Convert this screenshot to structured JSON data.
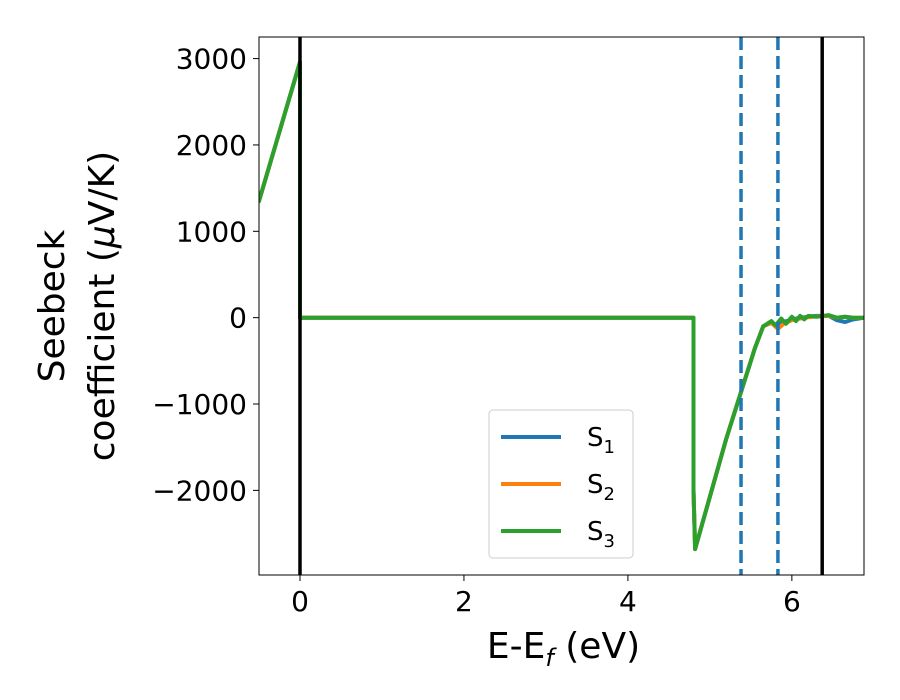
{
  "chart_data": {
    "type": "line",
    "xlabel_main": "E-E",
    "xlabel_sub": "f",
    "xlabel_unit": " (eV)",
    "ylabel_line1": "Seebeck",
    "ylabel_line2": "coefficient  (",
    "ylabel_mu": "μ",
    "ylabel_unit": "V/K)",
    "xlim": [
      -0.5,
      6.88
    ],
    "ylim": [
      -2980,
      3250
    ],
    "xticks": [
      0,
      2,
      4,
      6
    ],
    "yticks": [
      -2000,
      -1000,
      0,
      1000,
      2000,
      3000
    ],
    "xtick_labels": [
      "0",
      "2",
      "4",
      "6"
    ],
    "ytick_labels": [
      "−2000",
      "−1000",
      "0",
      "1000",
      "2000",
      "3000"
    ],
    "vlines": [
      {
        "x": 0.0,
        "style": "solid",
        "color": "#000000"
      },
      {
        "x": 6.37,
        "style": "solid",
        "color": "#000000"
      },
      {
        "x": 5.38,
        "style": "dashed",
        "color": "#1f77b4"
      },
      {
        "x": 5.83,
        "style": "dashed",
        "color": "#1f77b4"
      }
    ],
    "legend_position": "lower-center",
    "series": [
      {
        "name": "S",
        "sub": "1",
        "color": "#1f77b4",
        "x": [
          -0.5,
          0.0,
          0.0,
          4.8,
          4.8,
          4.82,
          5.2,
          5.4,
          5.55,
          5.65,
          5.75,
          5.83,
          5.9,
          6.0,
          6.1,
          6.2,
          6.3,
          6.45,
          6.55,
          6.65,
          6.75,
          6.88
        ],
        "y": [
          1350,
          2960,
          0,
          0,
          -2000,
          -2680,
          -1400,
          -800,
          -350,
          -100,
          -60,
          -110,
          -50,
          -20,
          0,
          10,
          20,
          20,
          -30,
          -50,
          -20,
          0
        ]
      },
      {
        "name": "S",
        "sub": "2",
        "color": "#ff7f0e",
        "x": [
          -0.5,
          0.0,
          0.0,
          4.8,
          4.8,
          4.82,
          5.2,
          5.4,
          5.55,
          5.65,
          5.75,
          5.83,
          5.9,
          6.0,
          6.1,
          6.2,
          6.3,
          6.45,
          6.55,
          6.65,
          6.75,
          6.88
        ],
        "y": [
          1350,
          2960,
          0,
          0,
          -2000,
          -2680,
          -1400,
          -800,
          -350,
          -100,
          -60,
          -130,
          -70,
          -30,
          -10,
          5,
          15,
          20,
          0,
          10,
          0,
          0
        ]
      },
      {
        "name": "S",
        "sub": "3",
        "color": "#2ca02c",
        "x": [
          -0.5,
          0.0,
          0.0,
          4.8,
          4.8,
          4.82,
          5.2,
          5.4,
          5.55,
          5.65,
          5.75,
          5.8,
          5.87,
          5.93,
          6.0,
          6.05,
          6.1,
          6.15,
          6.2,
          6.3,
          6.45,
          6.55,
          6.65,
          6.75,
          6.88
        ],
        "y": [
          1350,
          2960,
          0,
          0,
          -2000,
          -2680,
          -1400,
          -800,
          -350,
          -100,
          -40,
          -90,
          -10,
          -70,
          10,
          -40,
          20,
          -20,
          20,
          10,
          30,
          0,
          10,
          0,
          0
        ]
      }
    ]
  }
}
